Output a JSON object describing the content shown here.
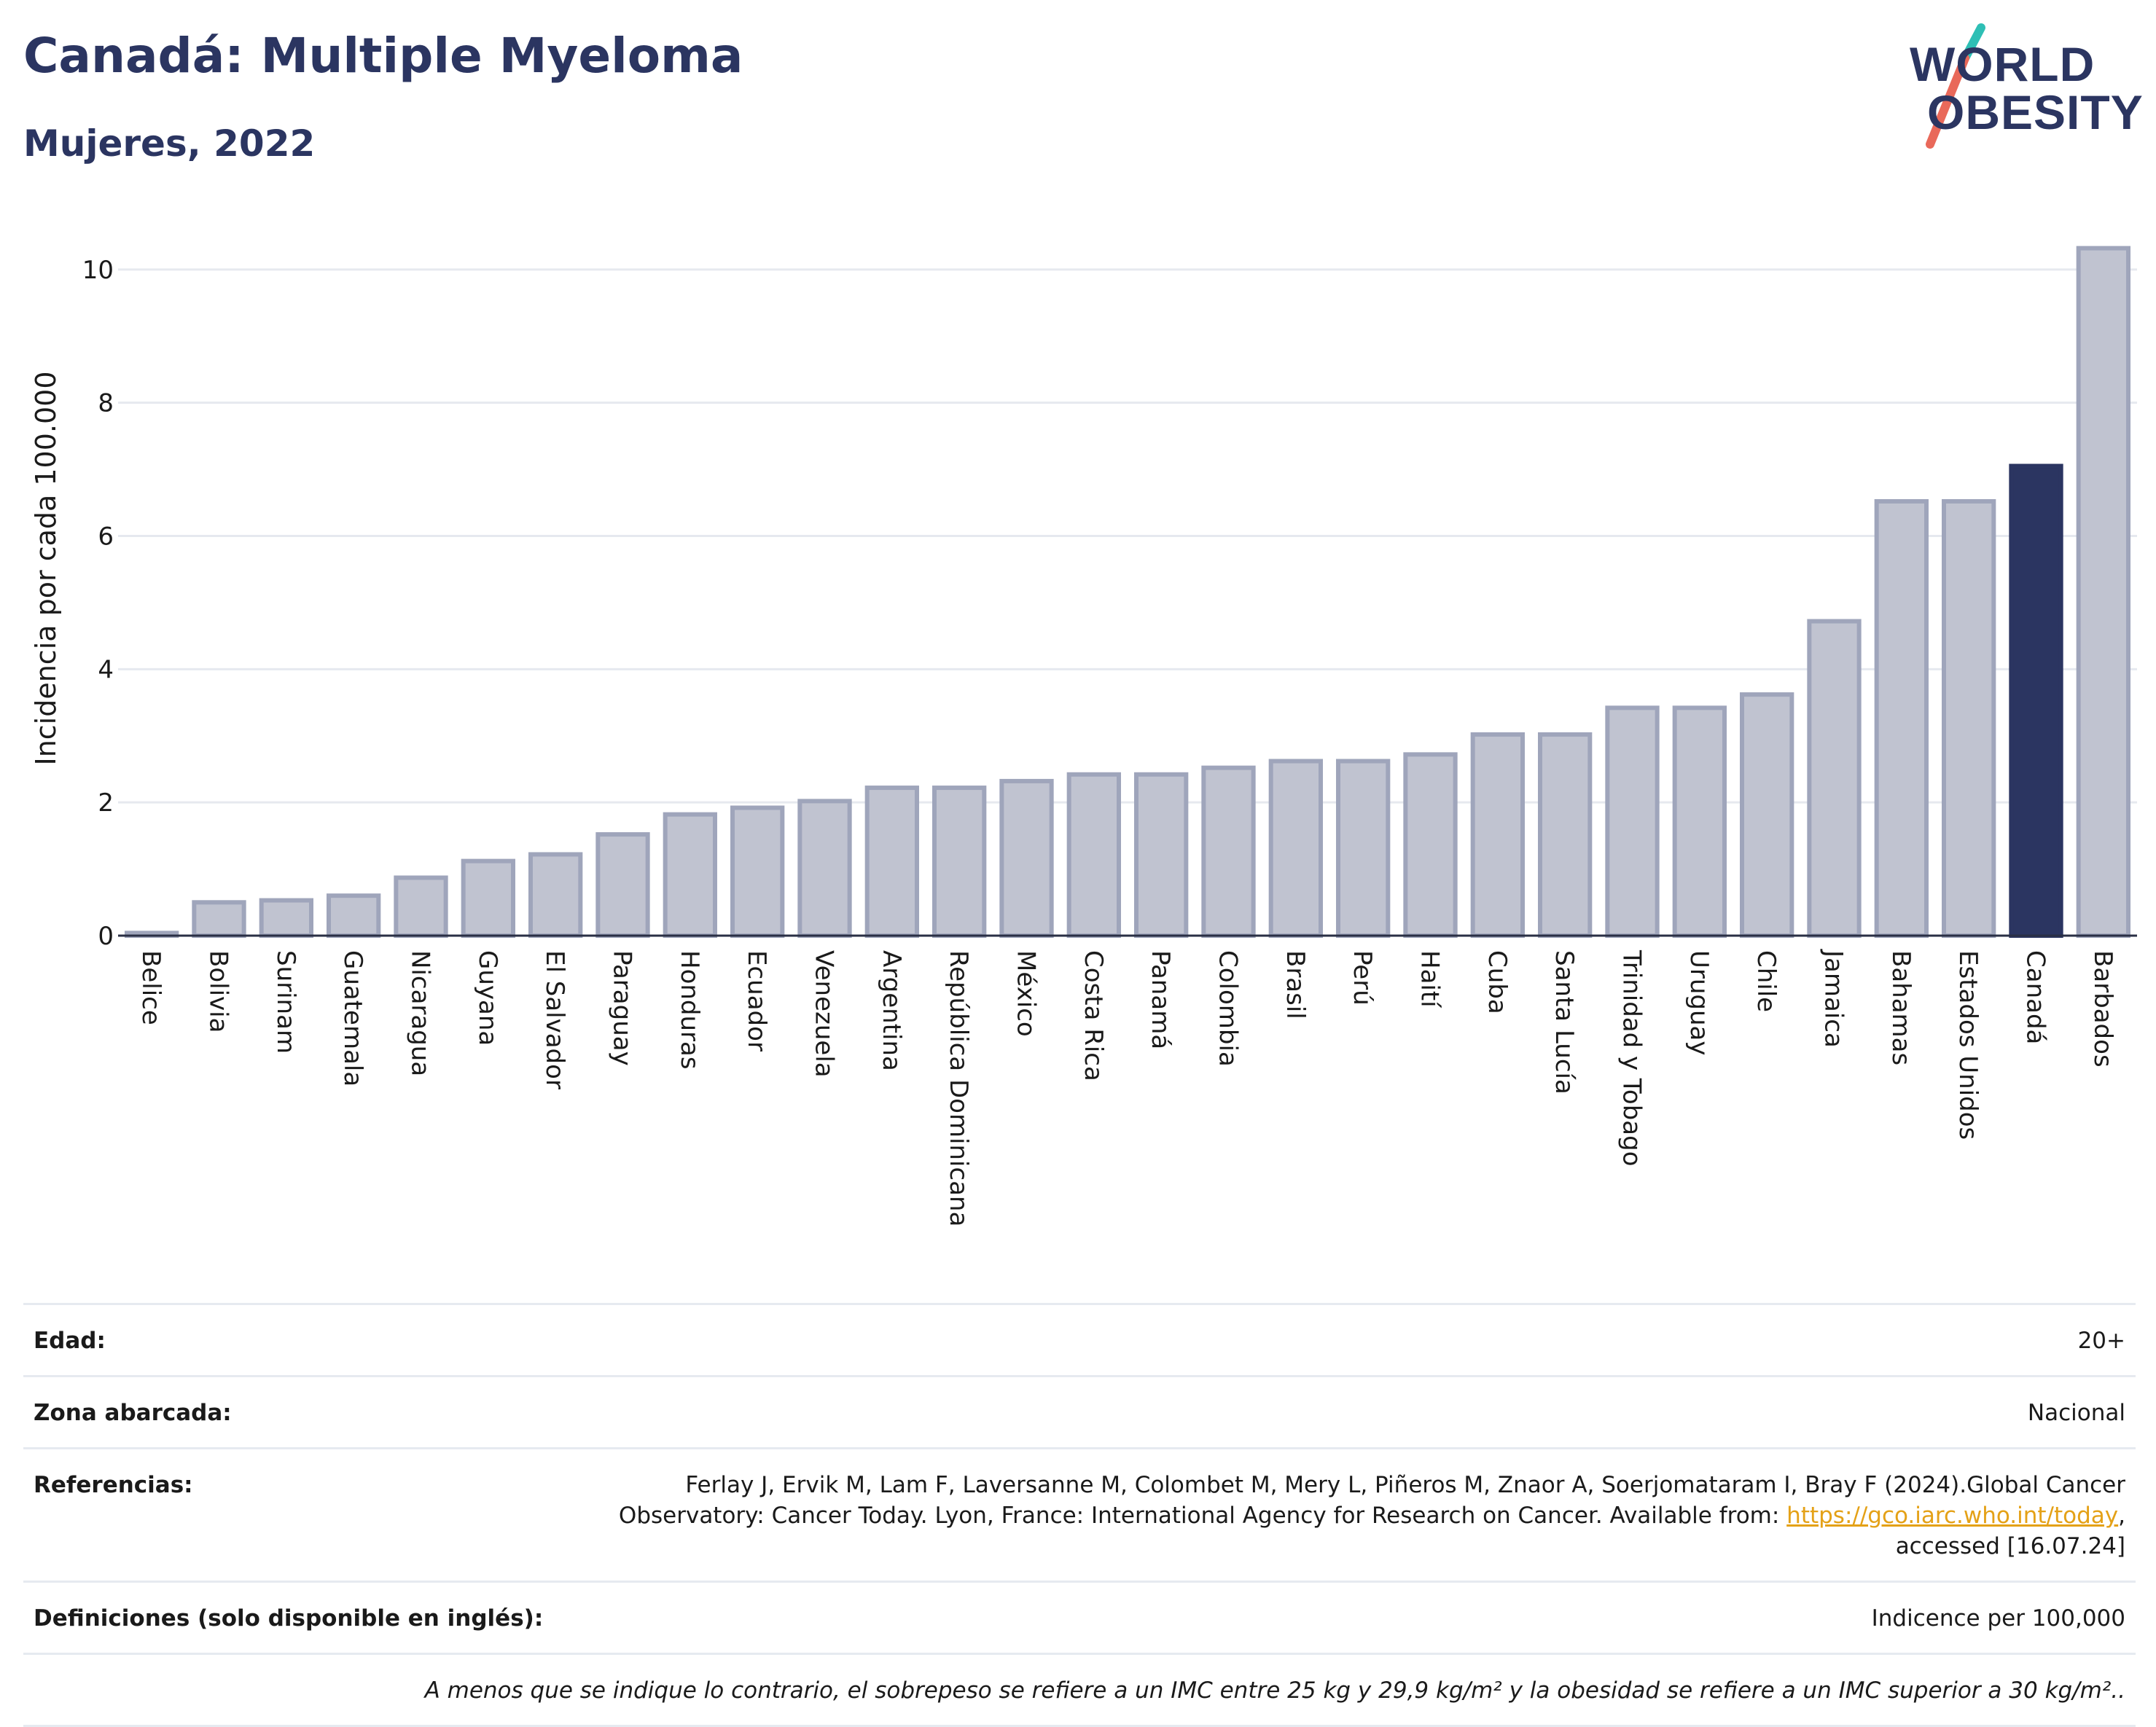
{
  "header": {
    "title": "Canadá: Multiple Myeloma",
    "subtitle": "Mujeres, 2022"
  },
  "logo": {
    "line1": "WORLD",
    "line2": "OBESITY",
    "accent_colors": [
      "#2ebfb5",
      "#e9695a"
    ]
  },
  "colors": {
    "bar": "#c0c3d0",
    "bar_border": "#9fa5bb",
    "highlight": "#2b3561",
    "title": "#2b3561",
    "link": "#e4a117"
  },
  "chart_data": {
    "type": "bar",
    "title": "Canadá: Multiple Myeloma",
    "subtitle": "Mujeres, 2022",
    "xlabel": "",
    "ylabel": "Incidencia por cada 100.000",
    "ylim": [
      0,
      10.6
    ],
    "yticks": [
      0,
      2,
      4,
      6,
      8,
      10
    ],
    "grid": true,
    "highlight": "Canadá",
    "categories": [
      "Belice",
      "Bolivia",
      "Surinam",
      "Guatemala",
      "Nicaragua",
      "Guyana",
      "El Salvador",
      "Paraguay",
      "Honduras",
      "Ecuador",
      "Venezuela",
      "Argentina",
      "República Dominicana",
      "México",
      "Costa Rica",
      "Panamá",
      "Colombia",
      "Brasil",
      "Perú",
      "Haití",
      "Cuba",
      "Santa Lucía",
      "Trinidad y Tobago",
      "Uruguay",
      "Chile",
      "Jamaica",
      "Bahamas",
      "Estados Unidos",
      "Canadá",
      "Barbados"
    ],
    "values": [
      0.04,
      0.5,
      0.53,
      0.6,
      0.87,
      1.12,
      1.22,
      1.52,
      1.82,
      1.92,
      2.02,
      2.22,
      2.22,
      2.32,
      2.42,
      2.42,
      2.52,
      2.62,
      2.62,
      2.72,
      3.02,
      3.02,
      3.42,
      3.42,
      3.62,
      4.72,
      6.52,
      6.52,
      7.05,
      10.32
    ]
  },
  "meta": {
    "age_label": "Edad:",
    "age_value": "20+",
    "area_label": "Zona abarcada:",
    "area_value": "Nacional",
    "ref_label": "Referencias:",
    "ref_text": "Ferlay J, Ervik M, Lam F, Laversanne M, Colombet M, Mery L, Piñeros M, Znaor A, Soerjomataram I, Bray F (2024).Global Cancer Observatory: Cancer Today. Lyon, France: International Agency for Research on Cancer. Available from: ",
    "ref_link": "https://gco.iarc.who.int/today",
    "ref_tail": ", accessed [16.07.24]",
    "def_label": "Definiciones (solo disponible en inglés):",
    "def_value": "Indicence per 100,000",
    "footnote": "A menos que se indique lo contrario, el sobrepeso se refiere a un IMC entre 25 kg y 29,9 kg/m² y la obesidad se refiere a un IMC superior a 30 kg/m².."
  }
}
